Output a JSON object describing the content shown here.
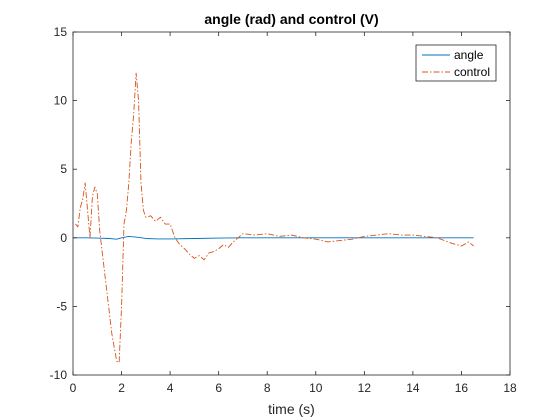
{
  "chart_data": {
    "type": "line",
    "title": "angle (rad) and control (V)",
    "xlabel": "time (s)",
    "ylabel": "",
    "xlim": [
      0,
      18
    ],
    "ylim": [
      -10,
      15
    ],
    "xticks": [
      0,
      2,
      4,
      6,
      8,
      10,
      12,
      14,
      16,
      18
    ],
    "yticks": [
      -10,
      -5,
      0,
      5,
      10,
      15
    ],
    "grid": false,
    "legend_position": "top-right",
    "series": [
      {
        "name": "angle",
        "color": "#0072BD",
        "line_style": "solid",
        "x": [
          0,
          0.5,
          1.0,
          1.5,
          1.8,
          2.0,
          2.3,
          2.6,
          3.0,
          3.5,
          4.0,
          5.0,
          6.0,
          7.0,
          8.0,
          9.0,
          10.0,
          11.0,
          12.0,
          13.0,
          14.0,
          15.0,
          16.0,
          16.5
        ],
        "y": [
          0.0,
          0.0,
          -0.02,
          -0.05,
          -0.1,
          0.0,
          0.1,
          0.05,
          -0.05,
          -0.08,
          -0.08,
          -0.05,
          -0.02,
          0.0,
          0.0,
          0.0,
          0.0,
          0.0,
          0.0,
          0.0,
          0.0,
          0.0,
          0.0,
          0.0
        ]
      },
      {
        "name": "control",
        "color": "#D95319",
        "line_style": "dashdot",
        "x": [
          0.1,
          0.2,
          0.3,
          0.4,
          0.5,
          0.6,
          0.7,
          0.8,
          0.9,
          1.0,
          1.1,
          1.2,
          1.3,
          1.4,
          1.5,
          1.6,
          1.7,
          1.8,
          1.9,
          2.0,
          2.1,
          2.2,
          2.3,
          2.4,
          2.5,
          2.6,
          2.7,
          2.8,
          2.9,
          3.0,
          3.2,
          3.4,
          3.6,
          3.8,
          4.0,
          4.2,
          4.4,
          4.6,
          4.8,
          5.0,
          5.2,
          5.4,
          5.6,
          5.8,
          6.0,
          6.2,
          6.4,
          6.6,
          6.8,
          7.0,
          7.5,
          8.0,
          8.5,
          9.0,
          9.5,
          10.0,
          10.5,
          11.0,
          11.5,
          12.0,
          12.5,
          13.0,
          13.5,
          14.0,
          14.5,
          15.0,
          15.3,
          15.6,
          16.0,
          16.3,
          16.5
        ],
        "y": [
          1.0,
          0.8,
          2.2,
          2.8,
          4.0,
          2.0,
          0.0,
          3.0,
          3.7,
          3.2,
          0.5,
          -1.0,
          -2.5,
          -4.0,
          -5.5,
          -7.0,
          -8.0,
          -9.0,
          -9.1,
          -5.0,
          1.0,
          2.0,
          4.0,
          7.0,
          9.0,
          12.0,
          10.0,
          4.0,
          2.0,
          1.5,
          1.6,
          1.2,
          1.5,
          1.0,
          1.0,
          0.0,
          -0.5,
          -0.8,
          -1.2,
          -1.5,
          -1.3,
          -1.6,
          -1.1,
          -1.0,
          -0.8,
          -0.5,
          -0.7,
          -0.3,
          0.0,
          0.3,
          0.2,
          0.3,
          0.1,
          0.2,
          0.0,
          -0.1,
          -0.3,
          -0.2,
          -0.1,
          0.1,
          0.2,
          0.3,
          0.2,
          0.2,
          0.1,
          0.0,
          -0.2,
          -0.4,
          -0.6,
          -0.3,
          -0.6
        ]
      }
    ]
  }
}
